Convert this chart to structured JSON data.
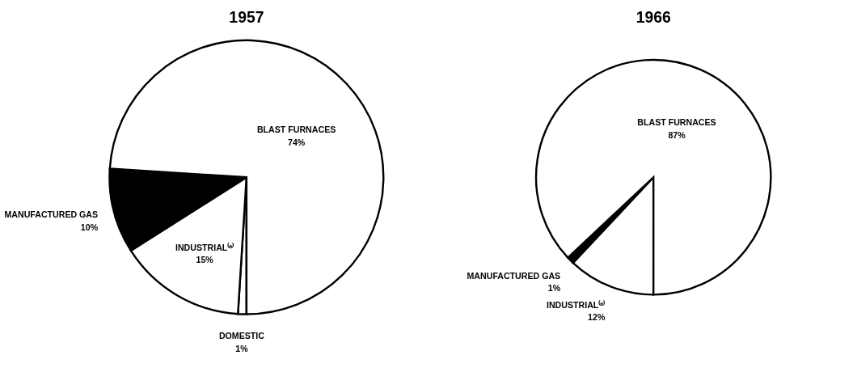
{
  "chart_data": [
    {
      "type": "pie",
      "title": "1957",
      "categories": [
        "DOMESTIC",
        "INDUSTRIAL⁽ᵃ⁾",
        "MANUFACTURED GAS",
        "BLAST FURNACES"
      ],
      "values": [
        1,
        15,
        10,
        74
      ],
      "colors": [
        "#ffffff",
        "#ffffff",
        "#000000",
        "#ffffff"
      ],
      "value_labels": [
        "1%",
        "15%",
        "10%",
        "74%"
      ]
    },
    {
      "type": "pie",
      "title": "1966",
      "categories": [
        "INDUSTRIAL⁽ᵃ⁾",
        "MANUFACTURED GAS",
        "BLAST FURNACES"
      ],
      "values": [
        12,
        1,
        87
      ],
      "colors": [
        "#ffffff",
        "#000000",
        "#ffffff"
      ],
      "value_labels": [
        "12%",
        "1%",
        "87%"
      ]
    }
  ]
}
